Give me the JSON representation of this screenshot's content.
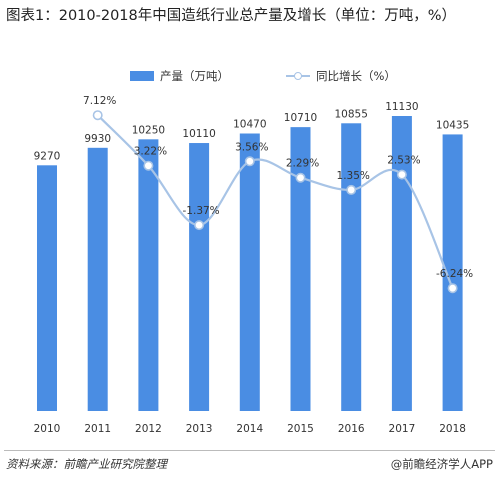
{
  "title": "图表1：2010-2018年中国造纸行业总产量及增长（单位：万吨，%）",
  "legend": {
    "bar_label": "产量（万吨）",
    "line_label": "同比增长（%）"
  },
  "colors": {
    "bar": "#4a8de3",
    "line": "#a8c4e6",
    "point_fill": "#ffffff"
  },
  "chart_data": {
    "type": "bar",
    "categories": [
      "2010",
      "2011",
      "2012",
      "2013",
      "2014",
      "2015",
      "2016",
      "2017",
      "2018"
    ],
    "series": [
      {
        "name": "产量（万吨）",
        "type": "bar",
        "values": [
          9270,
          9930,
          10250,
          10110,
          10470,
          10710,
          10855,
          11130,
          10435
        ],
        "labels": [
          "9270",
          "9930",
          "10250",
          "10110",
          "10470",
          "10710",
          "10855",
          "11130",
          "10435"
        ]
      },
      {
        "name": "同比增长（%）",
        "type": "line",
        "values": [
          null,
          7.12,
          3.22,
          -1.37,
          3.56,
          2.29,
          1.35,
          2.53,
          -6.24
        ],
        "labels": [
          "",
          "7.12%",
          "3.22%",
          "-1.37%",
          "3.56%",
          "2.29%",
          "1.35%",
          "2.53%",
          "-6.24%"
        ]
      }
    ],
    "grid": false,
    "legend_position": "top",
    "ylim_bar": [
      0,
      11130
    ],
    "ylim_line": [
      -8,
      12
    ]
  },
  "footer": {
    "source": "资料来源：前瞻产业研究院整理",
    "brand": "@前瞻经济学人APP"
  }
}
